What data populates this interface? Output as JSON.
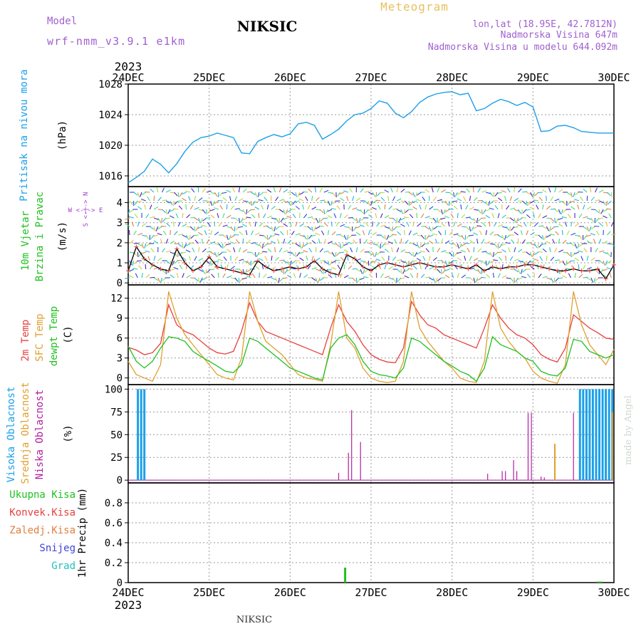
{
  "header": {
    "model_label": "Model",
    "model_name": "wrf-nmm_v3.9.1 e1km",
    "station": "NIKSIC",
    "meteogram": "Meteogram",
    "lonlat": "lon,lat (18.95E, 42.7812N)",
    "altitude": "Nadmorska Visina 647m",
    "model_altitude": "Nadmorska Visina u modelu 644.092m",
    "footer_station": "NIKSIC",
    "watermark": "made by Angel"
  },
  "time_axis": {
    "year": "2023",
    "labels": [
      "24DEC",
      "25DEC",
      "26DEC",
      "27DEC",
      "28DEC",
      "29DEC",
      "30DEC"
    ]
  },
  "colors": {
    "pressure": "#1ca0e8",
    "temp2m": "#e84040",
    "sfc": "#e0a030",
    "dewpt": "#20c020",
    "high_cloud": "#1ca0e8",
    "mid_cloud": "#e0a030",
    "low_cloud": "#b020a0",
    "total_precip": "#20c020",
    "wind_line": "#000000",
    "gust_marker": "#e84040"
  },
  "chart_data": [
    {
      "type": "line",
      "name": "pressure",
      "ylabel": [
        "Pritisak na nivou mora",
        "(hPa)"
      ],
      "yticks": [
        1016,
        1020,
        1024,
        1028
      ],
      "ylim": [
        1014.6,
        1028
      ],
      "x_days": [
        0,
        0.1,
        0.2,
        0.3,
        0.4,
        0.5,
        0.6,
        0.7,
        0.8,
        0.9,
        1.0,
        1.1,
        1.2,
        1.3,
        1.4,
        1.5,
        1.6,
        1.7,
        1.8,
        1.9,
        2.0,
        2.1,
        2.2,
        2.3,
        2.4,
        2.5,
        2.6,
        2.7,
        2.8,
        2.9,
        3.0,
        3.1,
        3.2,
        3.3,
        3.4,
        3.5,
        3.6,
        3.7,
        3.8,
        3.9,
        4.0,
        4.1,
        4.2,
        4.3,
        4.4,
        4.5,
        4.6,
        4.7,
        4.8,
        4.9,
        5.0,
        5.1,
        5.2,
        5.3,
        5.4,
        5.5,
        5.6,
        5.7,
        5.8,
        5.9,
        6.0
      ],
      "values": [
        1015.1,
        1015.8,
        1016.6,
        1018.2,
        1017.5,
        1016.4,
        1017.6,
        1019.2,
        1020.4,
        1021.0,
        1021.2,
        1021.6,
        1021.3,
        1021.0,
        1019.0,
        1018.9,
        1020.5,
        1021.0,
        1021.4,
        1021.1,
        1021.5,
        1022.8,
        1023.0,
        1022.6,
        1020.8,
        1021.4,
        1022.1,
        1023.2,
        1024.0,
        1024.2,
        1024.8,
        1025.8,
        1025.5,
        1024.2,
        1023.6,
        1024.4,
        1025.6,
        1026.3,
        1026.7,
        1026.9,
        1027.0,
        1026.6,
        1026.8,
        1024.5,
        1024.8,
        1025.5,
        1026.0,
        1025.7,
        1025.2,
        1025.6,
        1025.0,
        1021.8,
        1021.9,
        1022.5,
        1022.6,
        1022.3,
        1021.8,
        1021.7,
        1021.6,
        1021.6,
        1021.6
      ]
    },
    {
      "type": "line",
      "name": "wind",
      "ylabel": [
        "10m Vjetar",
        "Brzina i Pravac",
        "(m/s)"
      ],
      "compass": "W <-|-> E",
      "compass_ns": "S <-|-> N",
      "yticks": [
        0,
        1,
        2,
        3,
        4
      ],
      "ylim": [
        -0.1,
        4.8
      ],
      "x_days": [
        0,
        0.1,
        0.2,
        0.3,
        0.4,
        0.5,
        0.6,
        0.7,
        0.8,
        0.9,
        1.0,
        1.1,
        1.2,
        1.3,
        1.4,
        1.5,
        1.6,
        1.7,
        1.8,
        1.9,
        2.0,
        2.1,
        2.2,
        2.3,
        2.4,
        2.5,
        2.6,
        2.7,
        2.8,
        2.9,
        3.0,
        3.1,
        3.2,
        3.3,
        3.4,
        3.5,
        3.6,
        3.7,
        3.8,
        3.9,
        4.0,
        4.1,
        4.2,
        4.3,
        4.4,
        4.5,
        4.6,
        4.7,
        4.8,
        4.9,
        5.0,
        5.1,
        5.2,
        5.3,
        5.4,
        5.5,
        5.6,
        5.7,
        5.8,
        5.9,
        6.0
      ],
      "speed": [
        0.6,
        1.8,
        1.2,
        0.9,
        0.7,
        0.6,
        1.7,
        1.0,
        0.6,
        0.8,
        1.3,
        0.8,
        0.7,
        0.6,
        0.5,
        0.4,
        1.1,
        0.8,
        0.6,
        0.7,
        0.8,
        0.7,
        0.8,
        1.1,
        0.7,
        0.5,
        0.4,
        1.4,
        1.2,
        0.8,
        0.6,
        0.9,
        1.0,
        0.9,
        0.8,
        0.9,
        1.0,
        0.9,
        0.8,
        0.8,
        0.9,
        0.8,
        0.7,
        0.9,
        0.6,
        0.8,
        0.7,
        0.8,
        0.8,
        0.9,
        0.9,
        0.8,
        0.7,
        0.6,
        0.6,
        0.7,
        0.6,
        0.6,
        0.7,
        0.2,
        0.9
      ]
    },
    {
      "type": "line",
      "name": "temperature",
      "ylabel": [
        "2m Temp",
        "SFC Temp",
        "dewpt Temp",
        "(C)"
      ],
      "yticks": [
        0,
        3,
        6,
        9,
        12
      ],
      "ylim": [
        -1,
        14
      ],
      "x_days": [
        0,
        0.1,
        0.2,
        0.3,
        0.4,
        0.5,
        0.6,
        0.7,
        0.8,
        0.9,
        1.0,
        1.1,
        1.2,
        1.3,
        1.4,
        1.5,
        1.6,
        1.7,
        1.8,
        1.9,
        2.0,
        2.1,
        2.2,
        2.3,
        2.4,
        2.5,
        2.6,
        2.7,
        2.8,
        2.9,
        3.0,
        3.1,
        3.2,
        3.3,
        3.4,
        3.5,
        3.6,
        3.7,
        3.8,
        3.9,
        4.0,
        4.1,
        4.2,
        4.3,
        4.4,
        4.5,
        4.6,
        4.7,
        4.8,
        4.9,
        5.0,
        5.1,
        5.2,
        5.3,
        5.4,
        5.5,
        5.6,
        5.7,
        5.8,
        5.9,
        6.0
      ],
      "series": [
        {
          "name": "2m Temp",
          "color_key": "temp2m",
          "values": [
            4.6,
            4.2,
            3.5,
            3.8,
            5.2,
            11.0,
            8.0,
            7.0,
            6.5,
            5.5,
            4.5,
            3.8,
            3.6,
            4.0,
            7.0,
            11.3,
            8.5,
            7.0,
            6.5,
            6.0,
            5.5,
            5.0,
            4.5,
            4.0,
            3.5,
            7.5,
            11.0,
            8.5,
            7.0,
            5.0,
            3.5,
            2.8,
            2.4,
            2.3,
            4.5,
            11.5,
            9.5,
            8.0,
            7.5,
            6.5,
            6.0,
            5.5,
            5.0,
            4.5,
            7.5,
            11.0,
            9.0,
            7.5,
            6.5,
            6.0,
            5.0,
            3.5,
            2.8,
            2.4,
            4.5,
            9.5,
            8.5,
            7.5,
            6.8,
            6.0,
            5.8
          ]
        },
        {
          "name": "SFC Temp",
          "color_key": "sfc",
          "values": [
            2.5,
            0.5,
            0.0,
            -0.5,
            2.0,
            13.0,
            9.0,
            6.5,
            5.0,
            3.5,
            2.0,
            0.5,
            0.0,
            -0.3,
            3.0,
            13.0,
            8.5,
            5.5,
            4.5,
            3.5,
            2.0,
            0.5,
            0.0,
            -0.2,
            -0.5,
            5.0,
            13.0,
            6.0,
            4.5,
            1.5,
            0.0,
            -0.5,
            -0.7,
            -0.5,
            2.5,
            13.0,
            7.5,
            5.5,
            4.0,
            2.5,
            1.5,
            0.0,
            -0.5,
            -0.7,
            2.5,
            13.0,
            7.5,
            5.5,
            4.0,
            3.0,
            1.0,
            0.0,
            -0.5,
            -0.8,
            2.0,
            13.0,
            8.0,
            5.0,
            3.5,
            2.0,
            4.3
          ]
        },
        {
          "name": "dewpt Temp",
          "color_key": "dewpt",
          "values": [
            4.8,
            2.5,
            1.5,
            2.5,
            4.5,
            6.2,
            6.0,
            5.5,
            4.0,
            3.2,
            2.5,
            1.8,
            1.0,
            0.8,
            2.0,
            6.0,
            5.5,
            4.5,
            3.5,
            2.5,
            1.5,
            1.0,
            0.5,
            0.0,
            -0.3,
            4.5,
            6.0,
            6.5,
            5.0,
            2.5,
            1.0,
            0.5,
            0.3,
            0.0,
            1.5,
            6.0,
            5.5,
            4.5,
            3.5,
            2.5,
            1.8,
            1.0,
            0.5,
            -0.5,
            1.5,
            6.2,
            5.0,
            4.5,
            4.0,
            3.0,
            2.5,
            1.0,
            0.5,
            0.3,
            1.5,
            5.8,
            5.5,
            4.0,
            3.5,
            3.0,
            3.5
          ]
        }
      ]
    },
    {
      "type": "bar",
      "name": "cloudiness",
      "ylabel": [
        "Visoka Oblacnost",
        "Srednja Oblacnost",
        "Niska Oblacnost",
        "(%)"
      ],
      "yticks": [
        0,
        25,
        50,
        75,
        100
      ],
      "ylim": [
        -3,
        105
      ],
      "series": [
        {
          "name": "Visoka Oblacnost",
          "color_key": "high_cloud",
          "x_days": [
            0.12,
            0.16,
            0.2,
            5.58,
            5.62,
            5.66,
            5.7,
            5.74,
            5.78,
            5.82,
            5.86,
            5.9,
            5.94,
            5.98
          ],
          "values": [
            100,
            100,
            100,
            100,
            100,
            100,
            100,
            100,
            100,
            100,
            100,
            100,
            100,
            100
          ]
        },
        {
          "name": "Srednja Oblacnost",
          "color_key": "mid_cloud",
          "x_days": [
            5.27,
            5.98
          ],
          "values": [
            40,
            75
          ]
        },
        {
          "name": "Niska Oblacnost",
          "color_key": "low_cloud",
          "x_days": [
            2.6,
            2.72,
            2.76,
            2.87,
            4.44,
            4.62,
            4.66,
            4.76,
            4.8,
            4.94,
            4.98,
            5.1,
            5.14,
            5.5
          ],
          "values": [
            8,
            30,
            77,
            42,
            7,
            10,
            10,
            22,
            10,
            74,
            74,
            4,
            3,
            74
          ]
        }
      ]
    },
    {
      "type": "bar",
      "name": "precipitation",
      "ylabel": [
        "Ukupna Kisa",
        "Konvek.Kisa",
        "Zaledj.Kisa",
        "Snijeg",
        "Grad",
        "1hr Precip (mm)"
      ],
      "yticks": [
        0,
        0.2,
        0.4,
        0.6,
        0.8
      ],
      "yticklabels": [
        "0",
        "0.2",
        "0.4",
        "0.6",
        "0.8"
      ],
      "ylim": [
        0,
        1.0
      ],
      "series": [
        {
          "name": "Ukupna Kisa",
          "color_key": "total_precip",
          "x_days": [
            2.68,
            5.8,
            5.82,
            5.84
          ],
          "values": [
            0.15,
            0.01,
            0.01,
            0.01
          ]
        }
      ]
    }
  ]
}
